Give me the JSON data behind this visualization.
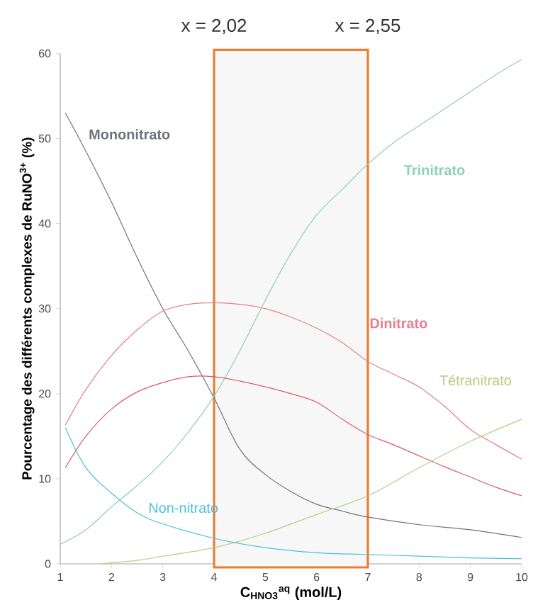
{
  "chart_data": {
    "type": "line",
    "xlabel": "C$_{HNO3}$$^{aq}$ (mol/L)",
    "ylabel": "Pourcentage des différents complexes de RuNO$^{3+}$ (%)",
    "xlim": [
      1,
      10
    ],
    "ylim": [
      0,
      60
    ],
    "xticks": [
      1,
      2,
      3,
      4,
      5,
      6,
      7,
      8,
      9,
      10
    ],
    "yticks": [
      0,
      10,
      20,
      30,
      40,
      50,
      60
    ],
    "grid": false,
    "series": [
      {
        "name": "Mononitrato",
        "color": "#6f7378",
        "x": [
          1.1,
          1.5,
          2,
          2.5,
          3,
          3.5,
          4,
          4.5,
          5,
          5.5,
          6,
          6.5,
          7,
          8,
          9,
          10
        ],
        "values": [
          53,
          48.5,
          42.5,
          36,
          30,
          25,
          19.5,
          13.5,
          10.5,
          8.5,
          7,
          6.2,
          5.5,
          4.6,
          4,
          3.1
        ]
      },
      {
        "name": "Trinitrato",
        "color": "#8fcfbb",
        "x": [
          1,
          1.5,
          2,
          2.5,
          3,
          3.5,
          4,
          4.5,
          5,
          5.5,
          6,
          6.5,
          7,
          7.5,
          8,
          8.5,
          9,
          9.5,
          10
        ],
        "values": [
          2.3,
          4,
          6.7,
          9.2,
          12,
          15.5,
          19.7,
          25,
          31,
          36.5,
          41,
          44,
          47,
          49.5,
          51.5,
          53.5,
          55.5,
          57.5,
          59.3
        ]
      },
      {
        "name": "Dinitrato",
        "color": "#e67f90",
        "x": [
          1.1,
          1.5,
          2,
          2.5,
          3,
          3.5,
          4,
          4.5,
          5,
          5.5,
          6,
          6.5,
          7,
          7.5,
          8,
          8.5,
          9,
          9.5,
          10
        ],
        "values": [
          16.3,
          20.5,
          24.5,
          27.5,
          29.7,
          30.5,
          30.7,
          30.5,
          30,
          29,
          27.7,
          26,
          23.8,
          22.3,
          20.8,
          18.5,
          15.8,
          14,
          12.3
        ]
      },
      {
        "color": "#da5a70",
        "x": [
          1.1,
          1.5,
          2,
          2.5,
          3,
          3.5,
          4,
          4.5,
          5,
          5.5,
          6,
          6.5,
          7,
          7.5,
          8,
          8.5,
          9,
          9.5,
          10
        ],
        "values": [
          11.3,
          15,
          18.2,
          20.2,
          21.3,
          22,
          22,
          21.5,
          20.8,
          20,
          19,
          17,
          15.2,
          14,
          12.7,
          11.4,
          10.2,
          9,
          8
        ]
      },
      {
        "name": "Tétranitrato",
        "color": "#b5cf7f",
        "x": [
          1.8,
          2.5,
          3,
          4,
          5,
          6,
          7,
          8,
          9,
          10
        ],
        "values": [
          0,
          0.4,
          0.9,
          1.9,
          3.6,
          5.8,
          8,
          11.3,
          14.4,
          17
        ]
      },
      {
        "name": "Non-nitrato",
        "color": "#4cc0db",
        "x": [
          1.1,
          1.5,
          2,
          2.5,
          3,
          4,
          5,
          6,
          7,
          8,
          9,
          10
        ],
        "values": [
          16,
          11.3,
          8.3,
          6,
          4.7,
          3,
          1.9,
          1.3,
          1.1,
          0.9,
          0.7,
          0.6
        ]
      }
    ],
    "bands": [
      {
        "axis": "x",
        "from": 4,
        "to": 7,
        "color": "#ed7d31"
      }
    ],
    "annotations": [
      "x = 2,02",
      "x = 2,55"
    ]
  }
}
